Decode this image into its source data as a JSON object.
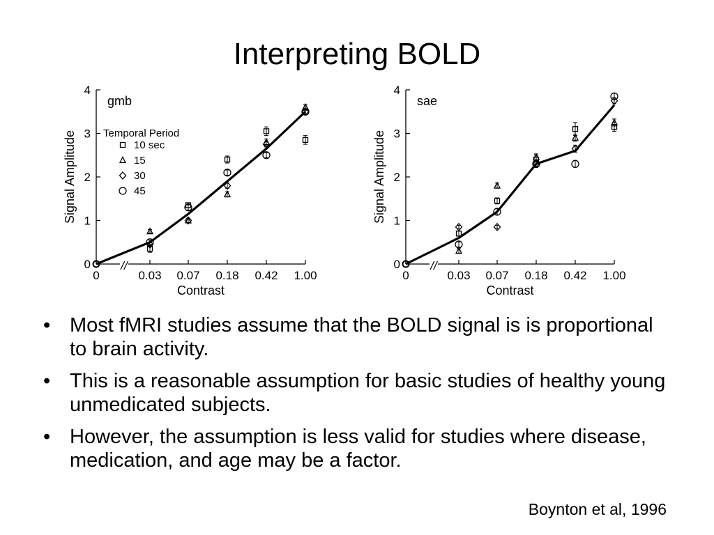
{
  "slide": {
    "title": "Interpreting BOLD",
    "bullets": [
      {
        "marker": "•",
        "text": "Most fMRI studies assume that the BOLD signal is is proportional to brain activity."
      },
      {
        "marker": "•",
        "text": "This is a reasonable assumption for basic studies of healthy young unmedicated subjects."
      },
      {
        "marker": "•",
        "text": "However, the assumption is less valid for studies where disease, medication, and age may be a factor."
      }
    ],
    "citation": "Boynton et al, 1996"
  },
  "chart_data": [
    {
      "type": "line",
      "subject": "gmb",
      "xlabel": "Contrast",
      "ylabel": "Signal Amplitude",
      "x_categories": [
        "0",
        "0.03",
        "0.07",
        "0.18",
        "0.42",
        "1.00"
      ],
      "ylim": [
        0,
        4
      ],
      "yticks": [
        "0",
        "1",
        "2",
        "3",
        "4"
      ],
      "axis_break_marker": "//",
      "legend": {
        "title": "Temporal Period",
        "placement": "upper-left",
        "entries": [
          {
            "label": "10 sec",
            "marker": "square"
          },
          {
            "label": "15",
            "marker": "triangle"
          },
          {
            "label": "30",
            "marker": "diamond"
          },
          {
            "label": "45",
            "marker": "circle"
          }
        ]
      },
      "fit_line": [
        0,
        0.5,
        1.15,
        1.9,
        2.65,
        3.5
      ],
      "series": [
        {
          "marker": "square",
          "values": [
            0,
            0.35,
            1.35,
            2.4,
            3.05,
            2.85
          ],
          "errors": [
            0,
            0.08,
            0.06,
            0.08,
            0.1,
            0.1
          ]
        },
        {
          "marker": "triangle",
          "values": [
            0,
            0.75,
            1.0,
            1.6,
            2.8,
            3.6
          ],
          "errors": [
            0,
            0.04,
            0.05,
            0.06,
            0.07,
            0.07
          ]
        },
        {
          "marker": "diamond",
          "values": [
            0,
            0.45,
            1.0,
            1.8,
            2.75,
            3.5
          ],
          "errors": [
            0,
            0.05,
            0.05,
            0.06,
            0.06,
            0.06
          ]
        },
        {
          "marker": "circle",
          "values": [
            0,
            0.5,
            1.3,
            2.1,
            2.5,
            3.5
          ],
          "errors": [
            0,
            0.05,
            0.06,
            0.06,
            0.06,
            0.06
          ]
        }
      ]
    },
    {
      "type": "line",
      "subject": "sae",
      "xlabel": "Contrast",
      "ylabel": "Signal Amplitude",
      "x_categories": [
        "0",
        "0.03",
        "0.07",
        "0.18",
        "0.42",
        "1.00"
      ],
      "ylim": [
        0,
        4
      ],
      "yticks": [
        "0",
        "1",
        "2",
        "3",
        "4"
      ],
      "axis_break_marker": "//",
      "fit_line": [
        0,
        0.6,
        1.2,
        2.3,
        2.6,
        3.65
      ],
      "series": [
        {
          "marker": "square",
          "values": [
            0,
            0.7,
            1.45,
            2.4,
            3.1,
            3.15
          ],
          "errors": [
            0,
            0.06,
            0.07,
            0.1,
            0.15,
            0.1
          ]
        },
        {
          "marker": "triangle",
          "values": [
            0,
            0.3,
            1.8,
            2.45,
            2.9,
            3.25
          ],
          "errors": [
            0,
            0.05,
            0.06,
            0.08,
            0.08,
            0.08
          ]
        },
        {
          "marker": "diamond",
          "values": [
            0,
            0.85,
            0.85,
            2.3,
            2.65,
            3.75
          ],
          "errors": [
            0,
            0.04,
            0.04,
            0.08,
            0.08,
            0.07
          ]
        },
        {
          "marker": "circle",
          "values": [
            0,
            0.45,
            1.2,
            2.3,
            2.3,
            3.85
          ],
          "errors": [
            0,
            0.06,
            0.07,
            0.08,
            0.08,
            0.07
          ]
        }
      ]
    }
  ]
}
